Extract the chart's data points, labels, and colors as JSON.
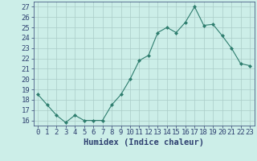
{
  "x": [
    0,
    1,
    2,
    3,
    4,
    5,
    6,
    7,
    8,
    9,
    10,
    11,
    12,
    13,
    14,
    15,
    16,
    17,
    18,
    19,
    20,
    21,
    22,
    23
  ],
  "y": [
    18.5,
    17.5,
    16.5,
    15.8,
    16.5,
    16.0,
    16.0,
    16.0,
    17.5,
    18.5,
    20.0,
    21.8,
    22.3,
    24.5,
    25.0,
    24.5,
    25.5,
    27.0,
    25.2,
    25.3,
    24.2,
    23.0,
    21.5,
    21.3
  ],
  "line_color": "#2e7d6e",
  "marker": "D",
  "marker_size": 2,
  "bg_color": "#cceee8",
  "grid_color": "#aaccc8",
  "xlabel": "Humidex (Indice chaleur)",
  "xlim": [
    -0.5,
    23.5
  ],
  "ylim": [
    15.5,
    27.5
  ],
  "yticks": [
    16,
    17,
    18,
    19,
    20,
    21,
    22,
    23,
    24,
    25,
    26,
    27
  ],
  "xticks": [
    0,
    1,
    2,
    3,
    4,
    5,
    6,
    7,
    8,
    9,
    10,
    11,
    12,
    13,
    14,
    15,
    16,
    17,
    18,
    19,
    20,
    21,
    22,
    23
  ],
  "tick_label_size": 6.5,
  "xlabel_size": 7.5,
  "text_color": "#2e4070"
}
